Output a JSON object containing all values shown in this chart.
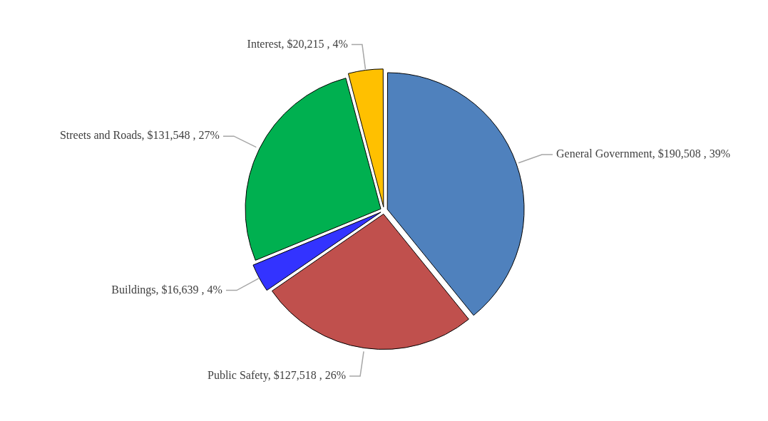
{
  "chart_data": {
    "type": "pie",
    "categories": [
      "General Government",
      "Public Safety",
      "Buildings",
      "Streets and Roads",
      "Interest"
    ],
    "values": [
      190508,
      127518,
      16639,
      131548,
      20215
    ],
    "value_labels": [
      "$190,508 , 39%",
      "$127,518 , 26%",
      "$16,639 , 4%",
      "$131,548 , 27%",
      "$20,215 , 4%"
    ],
    "colors": [
      "#4f81bd",
      "#c0504d",
      "#3333ff",
      "#00b050",
      "#ffc000"
    ],
    "legend": false
  }
}
